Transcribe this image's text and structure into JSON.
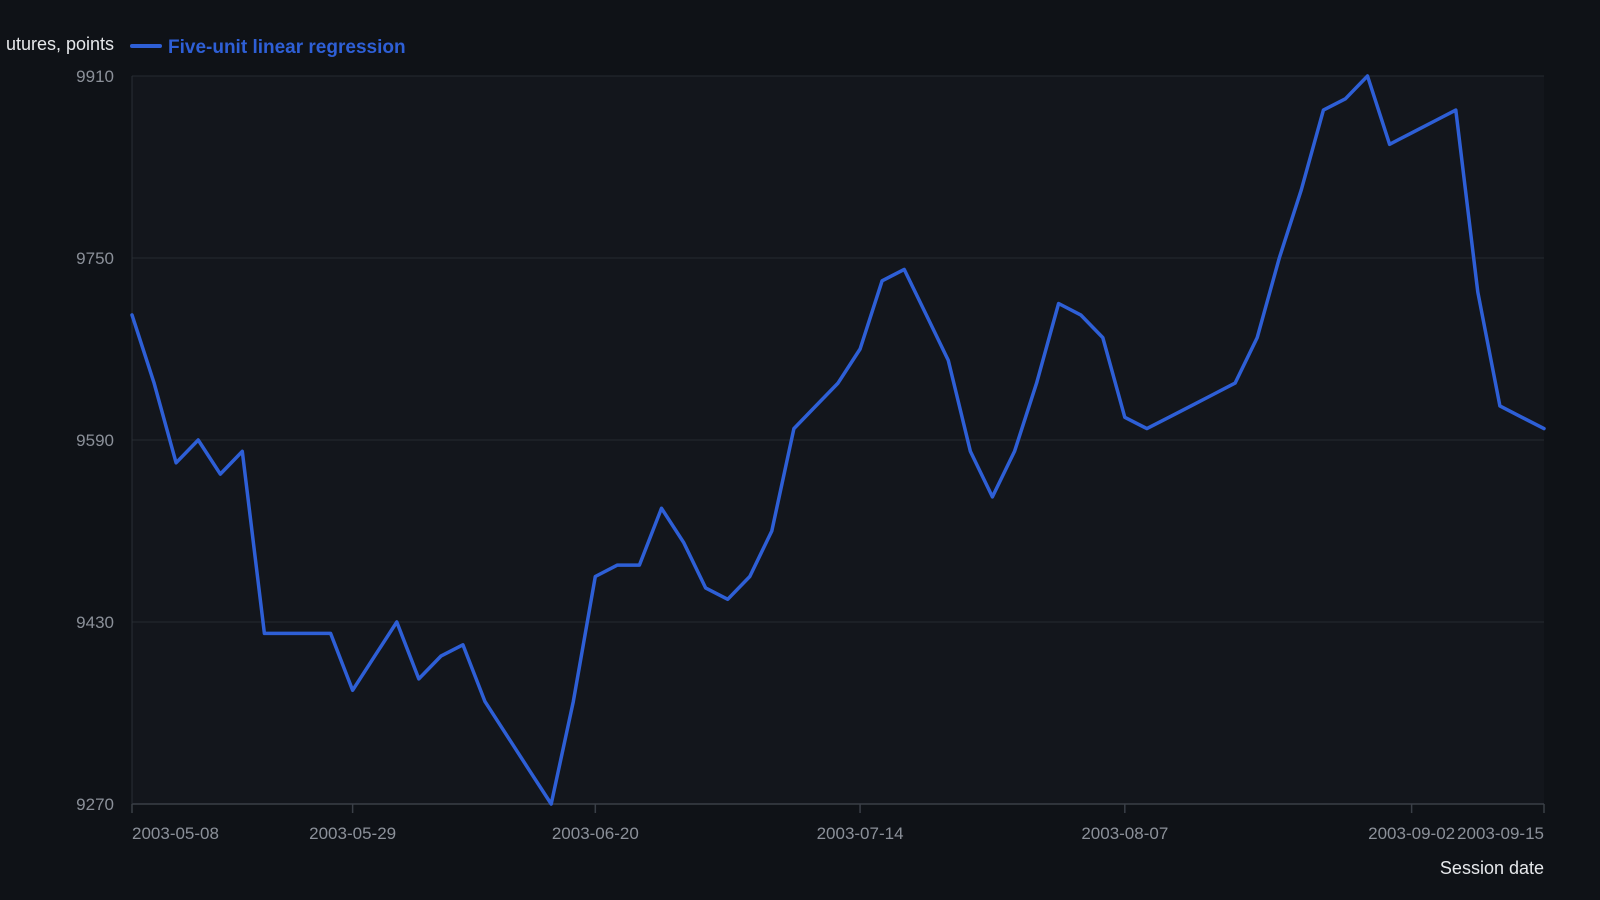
{
  "chart_data": {
    "type": "line",
    "ylabel": "utures, points",
    "xlabel": "Session date",
    "ylim": [
      9270,
      9910
    ],
    "y_ticks": [
      "9910",
      "9750",
      "9590",
      "9430",
      "9270"
    ],
    "x_ticks": [
      {
        "label": "2003-05-08",
        "index": 0
      },
      {
        "label": "2003-05-29",
        "index": 10
      },
      {
        "label": "2003-06-20",
        "index": 21
      },
      {
        "label": "2003-07-14",
        "index": 33
      },
      {
        "label": "2003-08-07",
        "index": 45
      },
      {
        "label": "2003-09-02",
        "index": 58
      },
      {
        "label": "2003-09-15",
        "index": 64
      }
    ],
    "grid": true,
    "legend_position": "top-left",
    "colors": {
      "background": "#0f1217",
      "plot_background": "#13161c",
      "grid": "#252a31",
      "series": "#2e5fd6"
    },
    "series": [
      {
        "name": "Five-unit linear regression",
        "values": [
          9700,
          9640,
          9570,
          9590,
          9560,
          9580,
          9420,
          9420,
          9420,
          9420,
          9370,
          9400,
          9430,
          9380,
          9400,
          9410,
          9360,
          9330,
          9300,
          9270,
          9360,
          9470,
          9480,
          9480,
          9530,
          9500,
          9460,
          9450,
          9470,
          9510,
          9600,
          9620,
          9640,
          9670,
          9730,
          9740,
          9700,
          9660,
          9580,
          9540,
          9580,
          9640,
          9710,
          9700,
          9680,
          9610,
          9600,
          9610,
          9620,
          9630,
          9640,
          9680,
          9750,
          9810,
          9880,
          9890,
          9910,
          9850,
          9860,
          9870,
          9880,
          9720,
          9620,
          9610,
          9600
        ]
      }
    ]
  }
}
